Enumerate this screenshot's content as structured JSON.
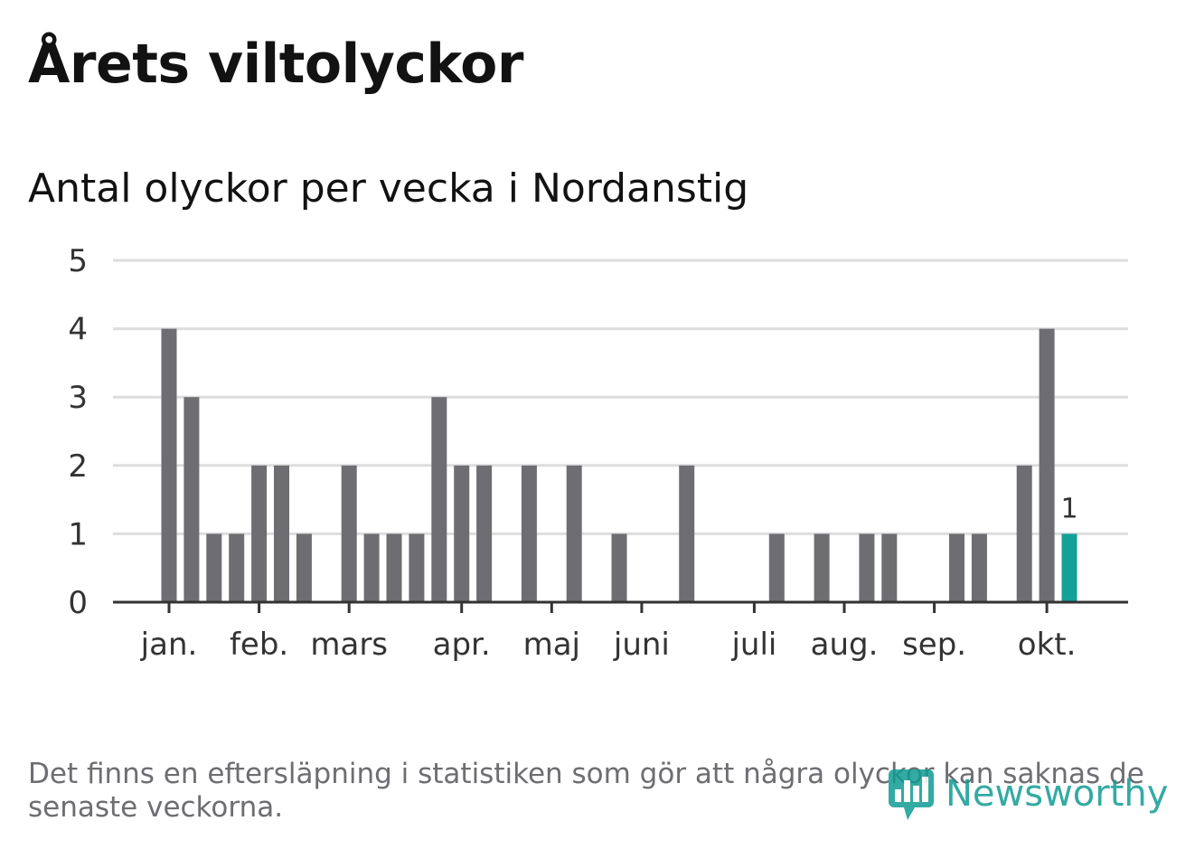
{
  "title": "Årets viltolyckor",
  "subtitle": "Antal olyckor per vecka i Nordanstig",
  "footnote": "Det finns en eftersläpning i statistiken som gör att några olyckor kan saknas de senaste veckorna.",
  "brand": "Newsworthy",
  "colors": {
    "bar": "#6d6d72",
    "highlight": "#12a097",
    "grid": "#dddddd",
    "axis": "#333333",
    "brand": "#109c93"
  },
  "chart_data": {
    "type": "bar",
    "title": "Antal olyckor per vecka i Nordanstig",
    "xlabel": "",
    "ylabel": "",
    "ylim": [
      0,
      5
    ],
    "yticks": [
      0,
      1,
      2,
      3,
      4,
      5
    ],
    "grid": true,
    "week_count": 43,
    "values": [
      4,
      3,
      1,
      1,
      2,
      2,
      1,
      0,
      2,
      1,
      1,
      1,
      3,
      2,
      2,
      0,
      2,
      0,
      2,
      0,
      1,
      0,
      0,
      2,
      0,
      0,
      0,
      1,
      0,
      1,
      0,
      1,
      1,
      0,
      0,
      1,
      1,
      0,
      2,
      4,
      1
    ],
    "highlight_index": 40,
    "highlight_label": "1",
    "months": [
      {
        "label": "jan.",
        "week": 0
      },
      {
        "label": "feb.",
        "week": 4
      },
      {
        "label": "mars",
        "week": 8
      },
      {
        "label": "apr.",
        "week": 13
      },
      {
        "label": "maj",
        "week": 17
      },
      {
        "label": "juni",
        "week": 21
      },
      {
        "label": "juli",
        "week": 26
      },
      {
        "label": "aug.",
        "week": 30
      },
      {
        "label": "sep.",
        "week": 34
      },
      {
        "label": "okt.",
        "week": 39
      }
    ]
  }
}
